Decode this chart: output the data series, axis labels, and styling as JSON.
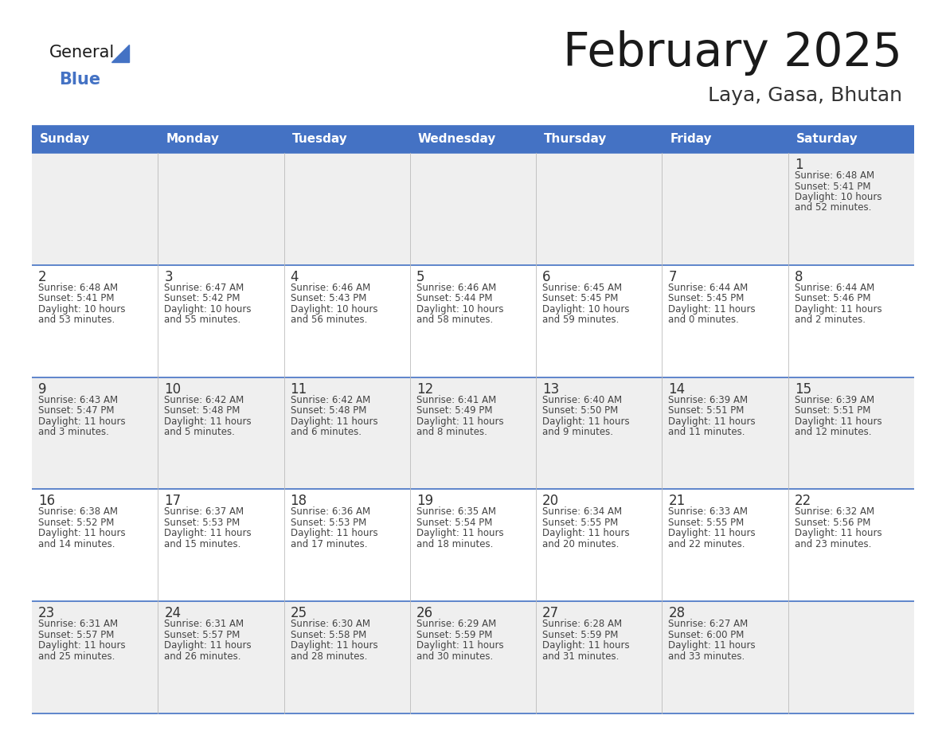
{
  "title": "February 2025",
  "subtitle": "Laya, Gasa, Bhutan",
  "header_bg": "#4472C4",
  "header_text_color": "#FFFFFF",
  "day_names": [
    "Sunday",
    "Monday",
    "Tuesday",
    "Wednesday",
    "Thursday",
    "Friday",
    "Saturday"
  ],
  "row1_bg": "#EFEFEF",
  "row2_bg": "#FFFFFF",
  "border_color": "#4472C4",
  "text_color": "#444444",
  "day_num_color": "#333333",
  "days": [
    {
      "day": 1,
      "col": 6,
      "row": 0,
      "sunrise": "6:48 AM",
      "sunset": "5:41 PM",
      "daylight_h": "10 hours",
      "daylight_m": "52 minutes"
    },
    {
      "day": 2,
      "col": 0,
      "row": 1,
      "sunrise": "6:48 AM",
      "sunset": "5:41 PM",
      "daylight_h": "10 hours",
      "daylight_m": "53 minutes"
    },
    {
      "day": 3,
      "col": 1,
      "row": 1,
      "sunrise": "6:47 AM",
      "sunset": "5:42 PM",
      "daylight_h": "10 hours",
      "daylight_m": "55 minutes"
    },
    {
      "day": 4,
      "col": 2,
      "row": 1,
      "sunrise": "6:46 AM",
      "sunset": "5:43 PM",
      "daylight_h": "10 hours",
      "daylight_m": "56 minutes"
    },
    {
      "day": 5,
      "col": 3,
      "row": 1,
      "sunrise": "6:46 AM",
      "sunset": "5:44 PM",
      "daylight_h": "10 hours",
      "daylight_m": "58 minutes"
    },
    {
      "day": 6,
      "col": 4,
      "row": 1,
      "sunrise": "6:45 AM",
      "sunset": "5:45 PM",
      "daylight_h": "10 hours",
      "daylight_m": "59 minutes"
    },
    {
      "day": 7,
      "col": 5,
      "row": 1,
      "sunrise": "6:44 AM",
      "sunset": "5:45 PM",
      "daylight_h": "11 hours",
      "daylight_m": "0 minutes"
    },
    {
      "day": 8,
      "col": 6,
      "row": 1,
      "sunrise": "6:44 AM",
      "sunset": "5:46 PM",
      "daylight_h": "11 hours",
      "daylight_m": "2 minutes"
    },
    {
      "day": 9,
      "col": 0,
      "row": 2,
      "sunrise": "6:43 AM",
      "sunset": "5:47 PM",
      "daylight_h": "11 hours",
      "daylight_m": "3 minutes"
    },
    {
      "day": 10,
      "col": 1,
      "row": 2,
      "sunrise": "6:42 AM",
      "sunset": "5:48 PM",
      "daylight_h": "11 hours",
      "daylight_m": "5 minutes"
    },
    {
      "day": 11,
      "col": 2,
      "row": 2,
      "sunrise": "6:42 AM",
      "sunset": "5:48 PM",
      "daylight_h": "11 hours",
      "daylight_m": "6 minutes"
    },
    {
      "day": 12,
      "col": 3,
      "row": 2,
      "sunrise": "6:41 AM",
      "sunset": "5:49 PM",
      "daylight_h": "11 hours",
      "daylight_m": "8 minutes"
    },
    {
      "day": 13,
      "col": 4,
      "row": 2,
      "sunrise": "6:40 AM",
      "sunset": "5:50 PM",
      "daylight_h": "11 hours",
      "daylight_m": "9 minutes"
    },
    {
      "day": 14,
      "col": 5,
      "row": 2,
      "sunrise": "6:39 AM",
      "sunset": "5:51 PM",
      "daylight_h": "11 hours",
      "daylight_m": "11 minutes"
    },
    {
      "day": 15,
      "col": 6,
      "row": 2,
      "sunrise": "6:39 AM",
      "sunset": "5:51 PM",
      "daylight_h": "11 hours",
      "daylight_m": "12 minutes"
    },
    {
      "day": 16,
      "col": 0,
      "row": 3,
      "sunrise": "6:38 AM",
      "sunset": "5:52 PM",
      "daylight_h": "11 hours",
      "daylight_m": "14 minutes"
    },
    {
      "day": 17,
      "col": 1,
      "row": 3,
      "sunrise": "6:37 AM",
      "sunset": "5:53 PM",
      "daylight_h": "11 hours",
      "daylight_m": "15 minutes"
    },
    {
      "day": 18,
      "col": 2,
      "row": 3,
      "sunrise": "6:36 AM",
      "sunset": "5:53 PM",
      "daylight_h": "11 hours",
      "daylight_m": "17 minutes"
    },
    {
      "day": 19,
      "col": 3,
      "row": 3,
      "sunrise": "6:35 AM",
      "sunset": "5:54 PM",
      "daylight_h": "11 hours",
      "daylight_m": "18 minutes"
    },
    {
      "day": 20,
      "col": 4,
      "row": 3,
      "sunrise": "6:34 AM",
      "sunset": "5:55 PM",
      "daylight_h": "11 hours",
      "daylight_m": "20 minutes"
    },
    {
      "day": 21,
      "col": 5,
      "row": 3,
      "sunrise": "6:33 AM",
      "sunset": "5:55 PM",
      "daylight_h": "11 hours",
      "daylight_m": "22 minutes"
    },
    {
      "day": 22,
      "col": 6,
      "row": 3,
      "sunrise": "6:32 AM",
      "sunset": "5:56 PM",
      "daylight_h": "11 hours",
      "daylight_m": "23 minutes"
    },
    {
      "day": 23,
      "col": 0,
      "row": 4,
      "sunrise": "6:31 AM",
      "sunset": "5:57 PM",
      "daylight_h": "11 hours",
      "daylight_m": "25 minutes"
    },
    {
      "day": 24,
      "col": 1,
      "row": 4,
      "sunrise": "6:31 AM",
      "sunset": "5:57 PM",
      "daylight_h": "11 hours",
      "daylight_m": "26 minutes"
    },
    {
      "day": 25,
      "col": 2,
      "row": 4,
      "sunrise": "6:30 AM",
      "sunset": "5:58 PM",
      "daylight_h": "11 hours",
      "daylight_m": "28 minutes"
    },
    {
      "day": 26,
      "col": 3,
      "row": 4,
      "sunrise": "6:29 AM",
      "sunset": "5:59 PM",
      "daylight_h": "11 hours",
      "daylight_m": "30 minutes"
    },
    {
      "day": 27,
      "col": 4,
      "row": 4,
      "sunrise": "6:28 AM",
      "sunset": "5:59 PM",
      "daylight_h": "11 hours",
      "daylight_m": "31 minutes"
    },
    {
      "day": 28,
      "col": 5,
      "row": 4,
      "sunrise": "6:27 AM",
      "sunset": "6:00 PM",
      "daylight_h": "11 hours",
      "daylight_m": "33 minutes"
    }
  ]
}
